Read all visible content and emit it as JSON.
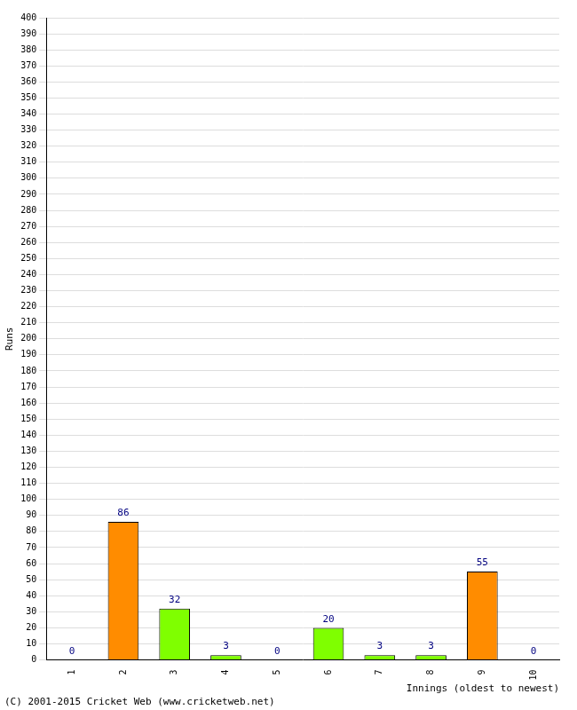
{
  "chart_data": {
    "type": "bar",
    "categories": [
      "1",
      "2",
      "3",
      "4",
      "5",
      "6",
      "7",
      "8",
      "9",
      "10"
    ],
    "values": [
      0,
      86,
      32,
      3,
      0,
      20,
      3,
      3,
      55,
      0
    ],
    "colors": [
      "#7fff00",
      "#ff8c00",
      "#7fff00",
      "#7fff00",
      "#7fff00",
      "#7fff00",
      "#7fff00",
      "#7fff00",
      "#ff8c00",
      "#7fff00"
    ],
    "x_label": "Innings (oldest to newest)",
    "y_label": "Runs",
    "annotations": [
      "(C) 2001-2015 Cricket Web (www.cricketweb.net)"
    ],
    "ylim": [
      0,
      400
    ],
    "yticks": [
      0,
      10,
      20,
      30,
      40,
      50,
      60,
      70,
      80,
      90,
      100,
      110,
      120,
      130,
      140,
      150,
      160,
      170,
      180,
      190,
      200,
      210,
      220,
      230,
      240,
      250,
      260,
      270,
      280,
      290,
      300,
      310,
      320,
      330,
      340,
      350,
      360,
      370,
      380,
      390,
      400
    ],
    "grid": true,
    "data_labels": true
  }
}
